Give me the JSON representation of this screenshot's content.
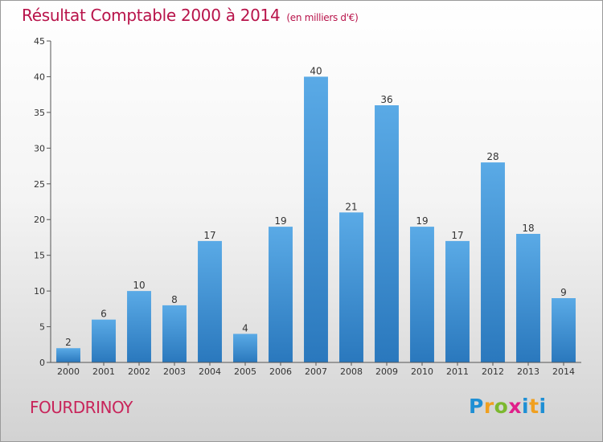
{
  "chart_data": {
    "type": "bar",
    "title": "Résultat Comptable 2000 à 2014",
    "subtitle": "(en milliers d'€)",
    "categories": [
      "2000",
      "2001",
      "2002",
      "2003",
      "2004",
      "2005",
      "2006",
      "2007",
      "2008",
      "2009",
      "2010",
      "2011",
      "2012",
      "2013",
      "2014"
    ],
    "values": [
      2,
      6,
      10,
      8,
      17,
      4,
      19,
      40,
      21,
      36,
      19,
      17,
      28,
      18,
      9
    ],
    "ylim": [
      0,
      45
    ],
    "yticks": [
      0,
      5,
      10,
      15,
      20,
      25,
      30,
      35,
      40,
      45
    ],
    "xlabel": "",
    "ylabel": "",
    "grid": false,
    "legend": "none"
  },
  "footer": {
    "commune": "FOURDRINOY",
    "logo": "Proxiti"
  },
  "colors": {
    "bar_light": "#5aaae6",
    "bar_dark": "#2a78bd",
    "title": "#b8134a"
  }
}
